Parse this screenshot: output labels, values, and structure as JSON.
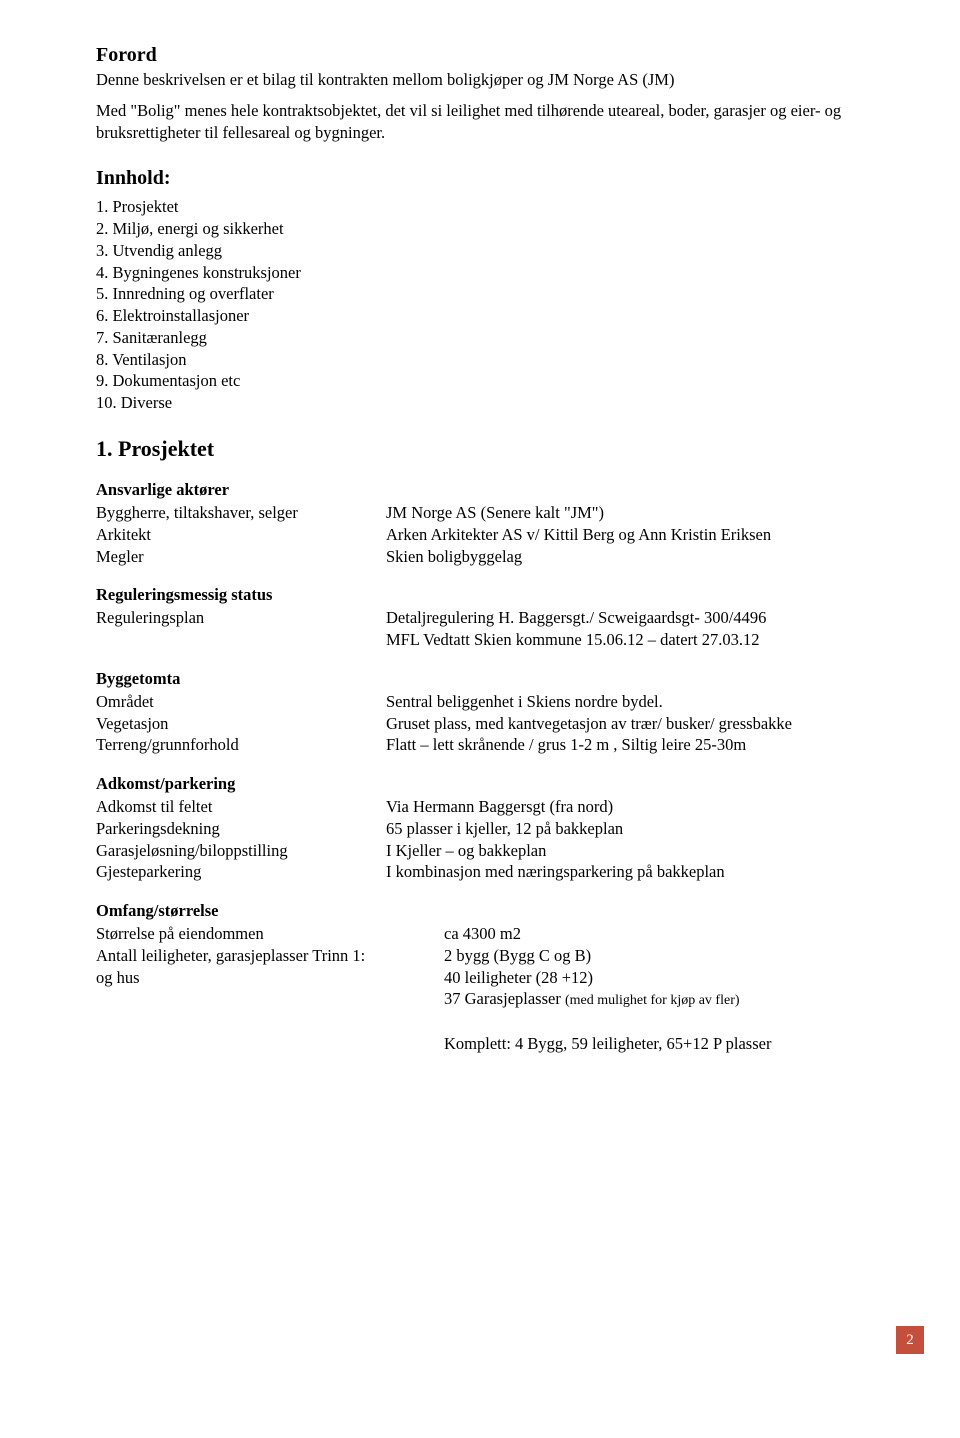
{
  "forord": {
    "heading": "Forord",
    "p1": "Denne beskrivelsen er et bilag til kontrakten mellom boligkjøper og JM Norge AS (JM)",
    "p2": "Med \"Bolig\" menes hele kontraktsobjektet, det vil si leilighet med tilhørende uteareal, boder, garasjer og eier- og bruksrettigheter til fellesareal og bygninger."
  },
  "innhold": {
    "heading": "Innhold:",
    "items": [
      "1. Prosjektet",
      "2. Miljø, energi og sikkerhet",
      "3. Utvendig anlegg",
      "4. Bygningenes konstruksjoner",
      "5. Innredning og overflater",
      "6. Elektroinstallasjoner",
      "7. Sanitæranlegg",
      "8. Ventilasjon",
      "9. Dokumentasjon etc",
      "10. Diverse"
    ]
  },
  "section1": {
    "heading": "1. Prosjektet",
    "ansvarlige": {
      "heading": "Ansvarlige aktører",
      "rows": [
        {
          "label": "Byggherre, tiltakshaver, selger",
          "value": "JM Norge AS  (Senere kalt \"JM\")"
        },
        {
          "label": "Arkitekt",
          "value": "Arken Arkitekter AS  v/ Kittil Berg og Ann Kristin Eriksen"
        },
        {
          "label": "Megler",
          "value": "Skien boligbyggelag"
        }
      ]
    },
    "regulering": {
      "heading": "Reguleringsmessig status",
      "rows": [
        {
          "label": "Reguleringsplan",
          "value": "Detaljregulering H. Baggersgt./ Scweigaardsgt- 300/4496\nMFL   Vedtatt Skien kommune 15.06.12 – datert 27.03.12"
        }
      ]
    },
    "byggetomta": {
      "heading": "Byggetomta",
      "rows": [
        {
          "label": "Området",
          "value": "Sentral beliggenhet i Skiens nordre bydel."
        },
        {
          "label": "Vegetasjon",
          "value": "Gruset plass, med kantvegetasjon av trær/ busker/ gressbakke"
        },
        {
          "label": "Terreng/grunnforhold",
          "value": "Flatt – lett skrånende / grus 1-2 m , Siltig leire 25-30m"
        }
      ]
    },
    "adkomst": {
      "heading": "Adkomst/parkering",
      "rows": [
        {
          "label": "Adkomst til feltet",
          "value": "Via Hermann Baggersgt (fra nord)"
        },
        {
          "label": "Parkeringsdekning",
          "value": "65 plasser i kjeller, 12 på bakkeplan"
        },
        {
          "label": "Garasjeløsning/biloppstilling",
          "value": "I Kjeller – og bakkeplan"
        },
        {
          "label": "Gjesteparkering",
          "value": "I kombinasjon med næringsparkering på bakkeplan"
        }
      ]
    },
    "omfang": {
      "heading": "Omfang/størrelse",
      "rows_left": [
        "Størrelse på eiendommen",
        "Antall leiligheter, garasjeplasser Trinn 1:",
        "og hus",
        ""
      ],
      "rows_right": [
        "ca 4300 m2",
        "2 bygg  (Bygg C og B)",
        "40 leiligheter (28 +12)",
        "37 Garasjeplasser (med mulighet for kjøp av fler)"
      ],
      "komplett": "Komplett: 4 Bygg, 59 leiligheter, 65+12 P plasser"
    }
  },
  "page_number": "2",
  "page_number_color": "#c54f3d"
}
